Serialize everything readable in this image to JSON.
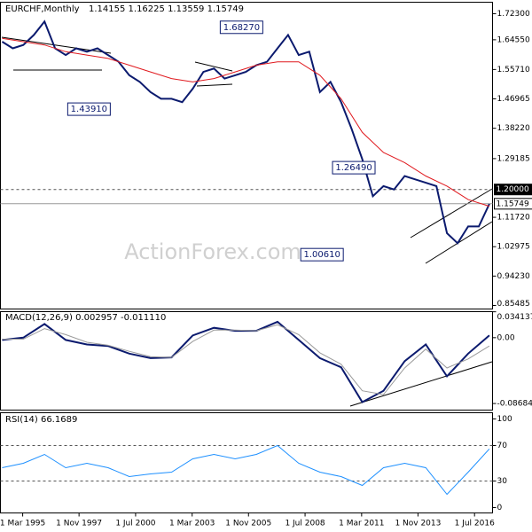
{
  "chart_data": [
    {
      "type": "line",
      "title": "EURCHF,Monthly",
      "subtitle": "1.14155 1.16225 1.13559 1.15749",
      "watermark": "ActionForex.com",
      "xlim": [
        1994.12,
        2017.35
      ],
      "xticks": [
        {
          "value": 1995.17,
          "label": "1 Mar 1995"
        },
        {
          "value": 1997.83,
          "label": "1 Nov 1997"
        },
        {
          "value": 2000.5,
          "label": "1 Jul 2000"
        },
        {
          "value": 2003.17,
          "label": "1 Mar 2003"
        },
        {
          "value": 2005.83,
          "label": "1 Nov 2005"
        },
        {
          "value": 2008.5,
          "label": "1 Jul 2008"
        },
        {
          "value": 2011.17,
          "label": "1 Mar 2011"
        },
        {
          "value": 2013.83,
          "label": "1 Nov 2013"
        },
        {
          "value": 2016.5,
          "label": "1 Jul 2016"
        }
      ],
      "ylim": [
        0.8443,
        1.7573
      ],
      "yticks": [
        {
          "value": 1.723,
          "label": "1.72300"
        },
        {
          "value": 1.6455,
          "label": "1.64550"
        },
        {
          "value": 1.5571,
          "label": "1.55710"
        },
        {
          "value": 1.46965,
          "label": "1.46965"
        },
        {
          "value": 1.3822,
          "label": "1.38220"
        },
        {
          "value": 1.29185,
          "label": "1.29185"
        },
        {
          "value": 1.1172,
          "label": "1.11720"
        },
        {
          "value": 1.02975,
          "label": "1.02975"
        },
        {
          "value": 0.9423,
          "label": "0.94230"
        },
        {
          "value": 0.85485,
          "label": "0.85485"
        }
      ],
      "levels": [
        {
          "value": 1.2,
          "label": "1.20000",
          "style": "dashed"
        },
        {
          "value": 1.15749,
          "label": "1.15749",
          "style": "solid"
        }
      ],
      "annotations": [
        {
          "x": 2005.5,
          "value": 1.6827,
          "label": "1.68270"
        },
        {
          "x": 1998.3,
          "value": 1.4391,
          "label": "1.43910"
        },
        {
          "x": 2010.8,
          "value": 1.2649,
          "label": "1.26490"
        },
        {
          "x": 2009.3,
          "value": 1.0061,
          "label": "1.00610"
        }
      ],
      "series": [
        {
          "name": "EURCHF",
          "color": "#0b1a6e",
          "x": [
            1994.2,
            1994.7,
            1995.2,
            1995.7,
            1996.2,
            1996.7,
            1997.2,
            1997.7,
            1998.2,
            1998.7,
            1999.2,
            1999.7,
            2000.2,
            2000.7,
            2001.2,
            2001.7,
            2002.2,
            2002.7,
            2003.2,
            2003.7,
            2004.2,
            2004.7,
            2005.2,
            2005.7,
            2006.2,
            2006.7,
            2007.2,
            2007.7,
            2008.2,
            2008.7,
            2009.2,
            2009.7,
            2010.2,
            2010.7,
            2011.2,
            2011.7,
            2012.2,
            2012.7,
            2013.2,
            2013.7,
            2014.2,
            2014.7,
            2015.2,
            2015.7,
            2016.2,
            2016.7,
            2017.2
          ],
          "values": [
            1.64,
            1.62,
            1.63,
            1.66,
            1.7,
            1.62,
            1.6,
            1.62,
            1.61,
            1.62,
            1.6,
            1.58,
            1.54,
            1.52,
            1.49,
            1.47,
            1.47,
            1.46,
            1.5,
            1.55,
            1.56,
            1.53,
            1.54,
            1.55,
            1.57,
            1.58,
            1.62,
            1.66,
            1.6,
            1.61,
            1.49,
            1.52,
            1.46,
            1.38,
            1.29,
            1.18,
            1.21,
            1.2,
            1.24,
            1.23,
            1.22,
            1.21,
            1.07,
            1.04,
            1.09,
            1.09,
            1.157
          ]
        },
        {
          "name": "MA",
          "color": "#e0191e",
          "x": [
            1994.2,
            1995.2,
            1996.2,
            1997.2,
            1998.2,
            1999.2,
            2000.2,
            2001.2,
            2002.2,
            2003.2,
            2004.2,
            2005.2,
            2006.2,
            2007.2,
            2008.2,
            2009.2,
            2010.2,
            2011.2,
            2012.2,
            2013.2,
            2014.2,
            2015.2,
            2016.2,
            2017.2
          ],
          "values": [
            1.65,
            1.64,
            1.63,
            1.61,
            1.6,
            1.59,
            1.57,
            1.55,
            1.53,
            1.52,
            1.53,
            1.55,
            1.57,
            1.58,
            1.58,
            1.54,
            1.47,
            1.37,
            1.31,
            1.28,
            1.24,
            1.21,
            1.17,
            1.15
          ]
        }
      ]
    },
    {
      "type": "line",
      "title": "MACD(12,26,9) 0.002957 -0.011110",
      "xlim": [
        1994.12,
        2017.35
      ],
      "ylim": [
        -0.0955,
        0.0343
      ],
      "yticks": [
        {
          "value": 0.034137,
          "label": "0.034137"
        },
        {
          "value": 0,
          "label": "0.00"
        },
        {
          "value": -0.086849,
          "label": "-0.086849"
        }
      ],
      "series": [
        {
          "name": "MACD",
          "color": "#0b1a6e",
          "x": [
            1994.2,
            1995.2,
            1996.2,
            1997.2,
            1998.2,
            1999.2,
            2000.2,
            2001.2,
            2002.2,
            2003.2,
            2004.2,
            2005.2,
            2006.2,
            2007.2,
            2008.2,
            2009.2,
            2010.2,
            2011.2,
            2012.2,
            2013.2,
            2014.2,
            2015.2,
            2016.2,
            2017.2
          ],
          "values": [
            -0.003,
            0,
            0.018,
            -0.003,
            -0.009,
            -0.011,
            -0.021,
            -0.027,
            -0.026,
            0.003,
            0.013,
            0.009,
            0.009,
            0.021,
            -0.003,
            -0.027,
            -0.039,
            -0.085,
            -0.07,
            -0.031,
            -0.009,
            -0.051,
            -0.021,
            0.003
          ]
        },
        {
          "name": "Signal",
          "color": "#9a9a9a",
          "x": [
            1994.2,
            1995.2,
            1996.2,
            1997.2,
            1998.2,
            1999.2,
            2000.2,
            2001.2,
            2002.2,
            2003.2,
            2004.2,
            2005.2,
            2006.2,
            2007.2,
            2008.2,
            2009.2,
            2010.2,
            2011.2,
            2012.2,
            2013.2,
            2014.2,
            2015.2,
            2016.2,
            2017.2
          ],
          "values": [
            -0.002,
            -0.002,
            0.012,
            0.004,
            -0.006,
            -0.01,
            -0.018,
            -0.025,
            -0.026,
            -0.005,
            0.01,
            0.01,
            0.009,
            0.017,
            0.004,
            -0.02,
            -0.035,
            -0.07,
            -0.075,
            -0.04,
            -0.015,
            -0.04,
            -0.028,
            -0.011
          ]
        }
      ]
    },
    {
      "type": "line",
      "title": "RSI(14) 66.1689",
      "xlim": [
        1994.12,
        2017.35
      ],
      "ylim": [
        -6,
        107
      ],
      "yticks": [
        100,
        70,
        30,
        0
      ],
      "levels": [
        {
          "value": 70,
          "style": "dashed"
        },
        {
          "value": 30,
          "style": "dashed"
        }
      ],
      "series": [
        {
          "name": "RSI",
          "color": "#1e90ff",
          "x": [
            1994.2,
            1995.2,
            1996.2,
            1997.2,
            1998.2,
            1999.2,
            2000.2,
            2001.2,
            2002.2,
            2003.2,
            2004.2,
            2005.2,
            2006.2,
            2007.2,
            2008.2,
            2009.2,
            2010.2,
            2011.2,
            2012.2,
            2013.2,
            2014.2,
            2015.2,
            2016.2,
            2017.2
          ],
          "values": [
            45,
            50,
            60,
            45,
            50,
            45,
            35,
            38,
            40,
            55,
            60,
            55,
            60,
            70,
            50,
            40,
            35,
            25,
            45,
            50,
            45,
            15,
            40,
            66.17
          ]
        }
      ]
    }
  ]
}
